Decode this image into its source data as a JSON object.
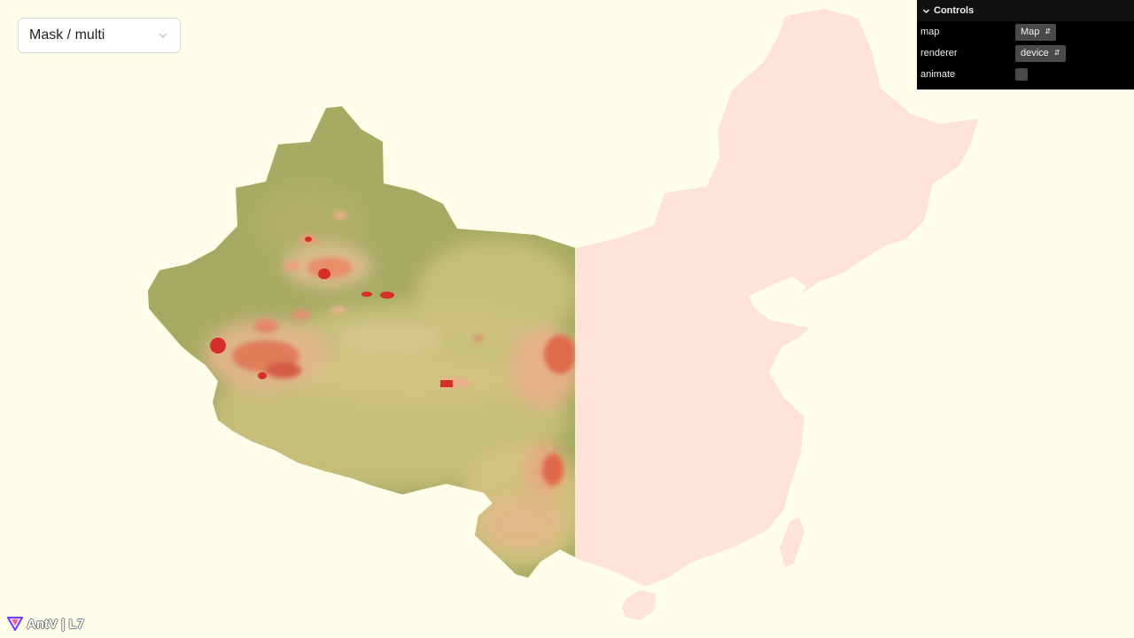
{
  "case_select": {
    "value": "Mask / multi"
  },
  "controls": {
    "title": "Controls",
    "rows": [
      {
        "label": "map",
        "value": "Map"
      },
      {
        "label": "renderer",
        "value": "device"
      },
      {
        "label": "animate",
        "checked": false
      }
    ]
  },
  "logo": {
    "text": "AntV | L7"
  },
  "colors": {
    "background": "#fffeea",
    "mask_fill": "#ffe3d6",
    "raster_low": "#a6ab63",
    "raster_mid": "#d4c585",
    "raster_high": "#d62f2a"
  }
}
